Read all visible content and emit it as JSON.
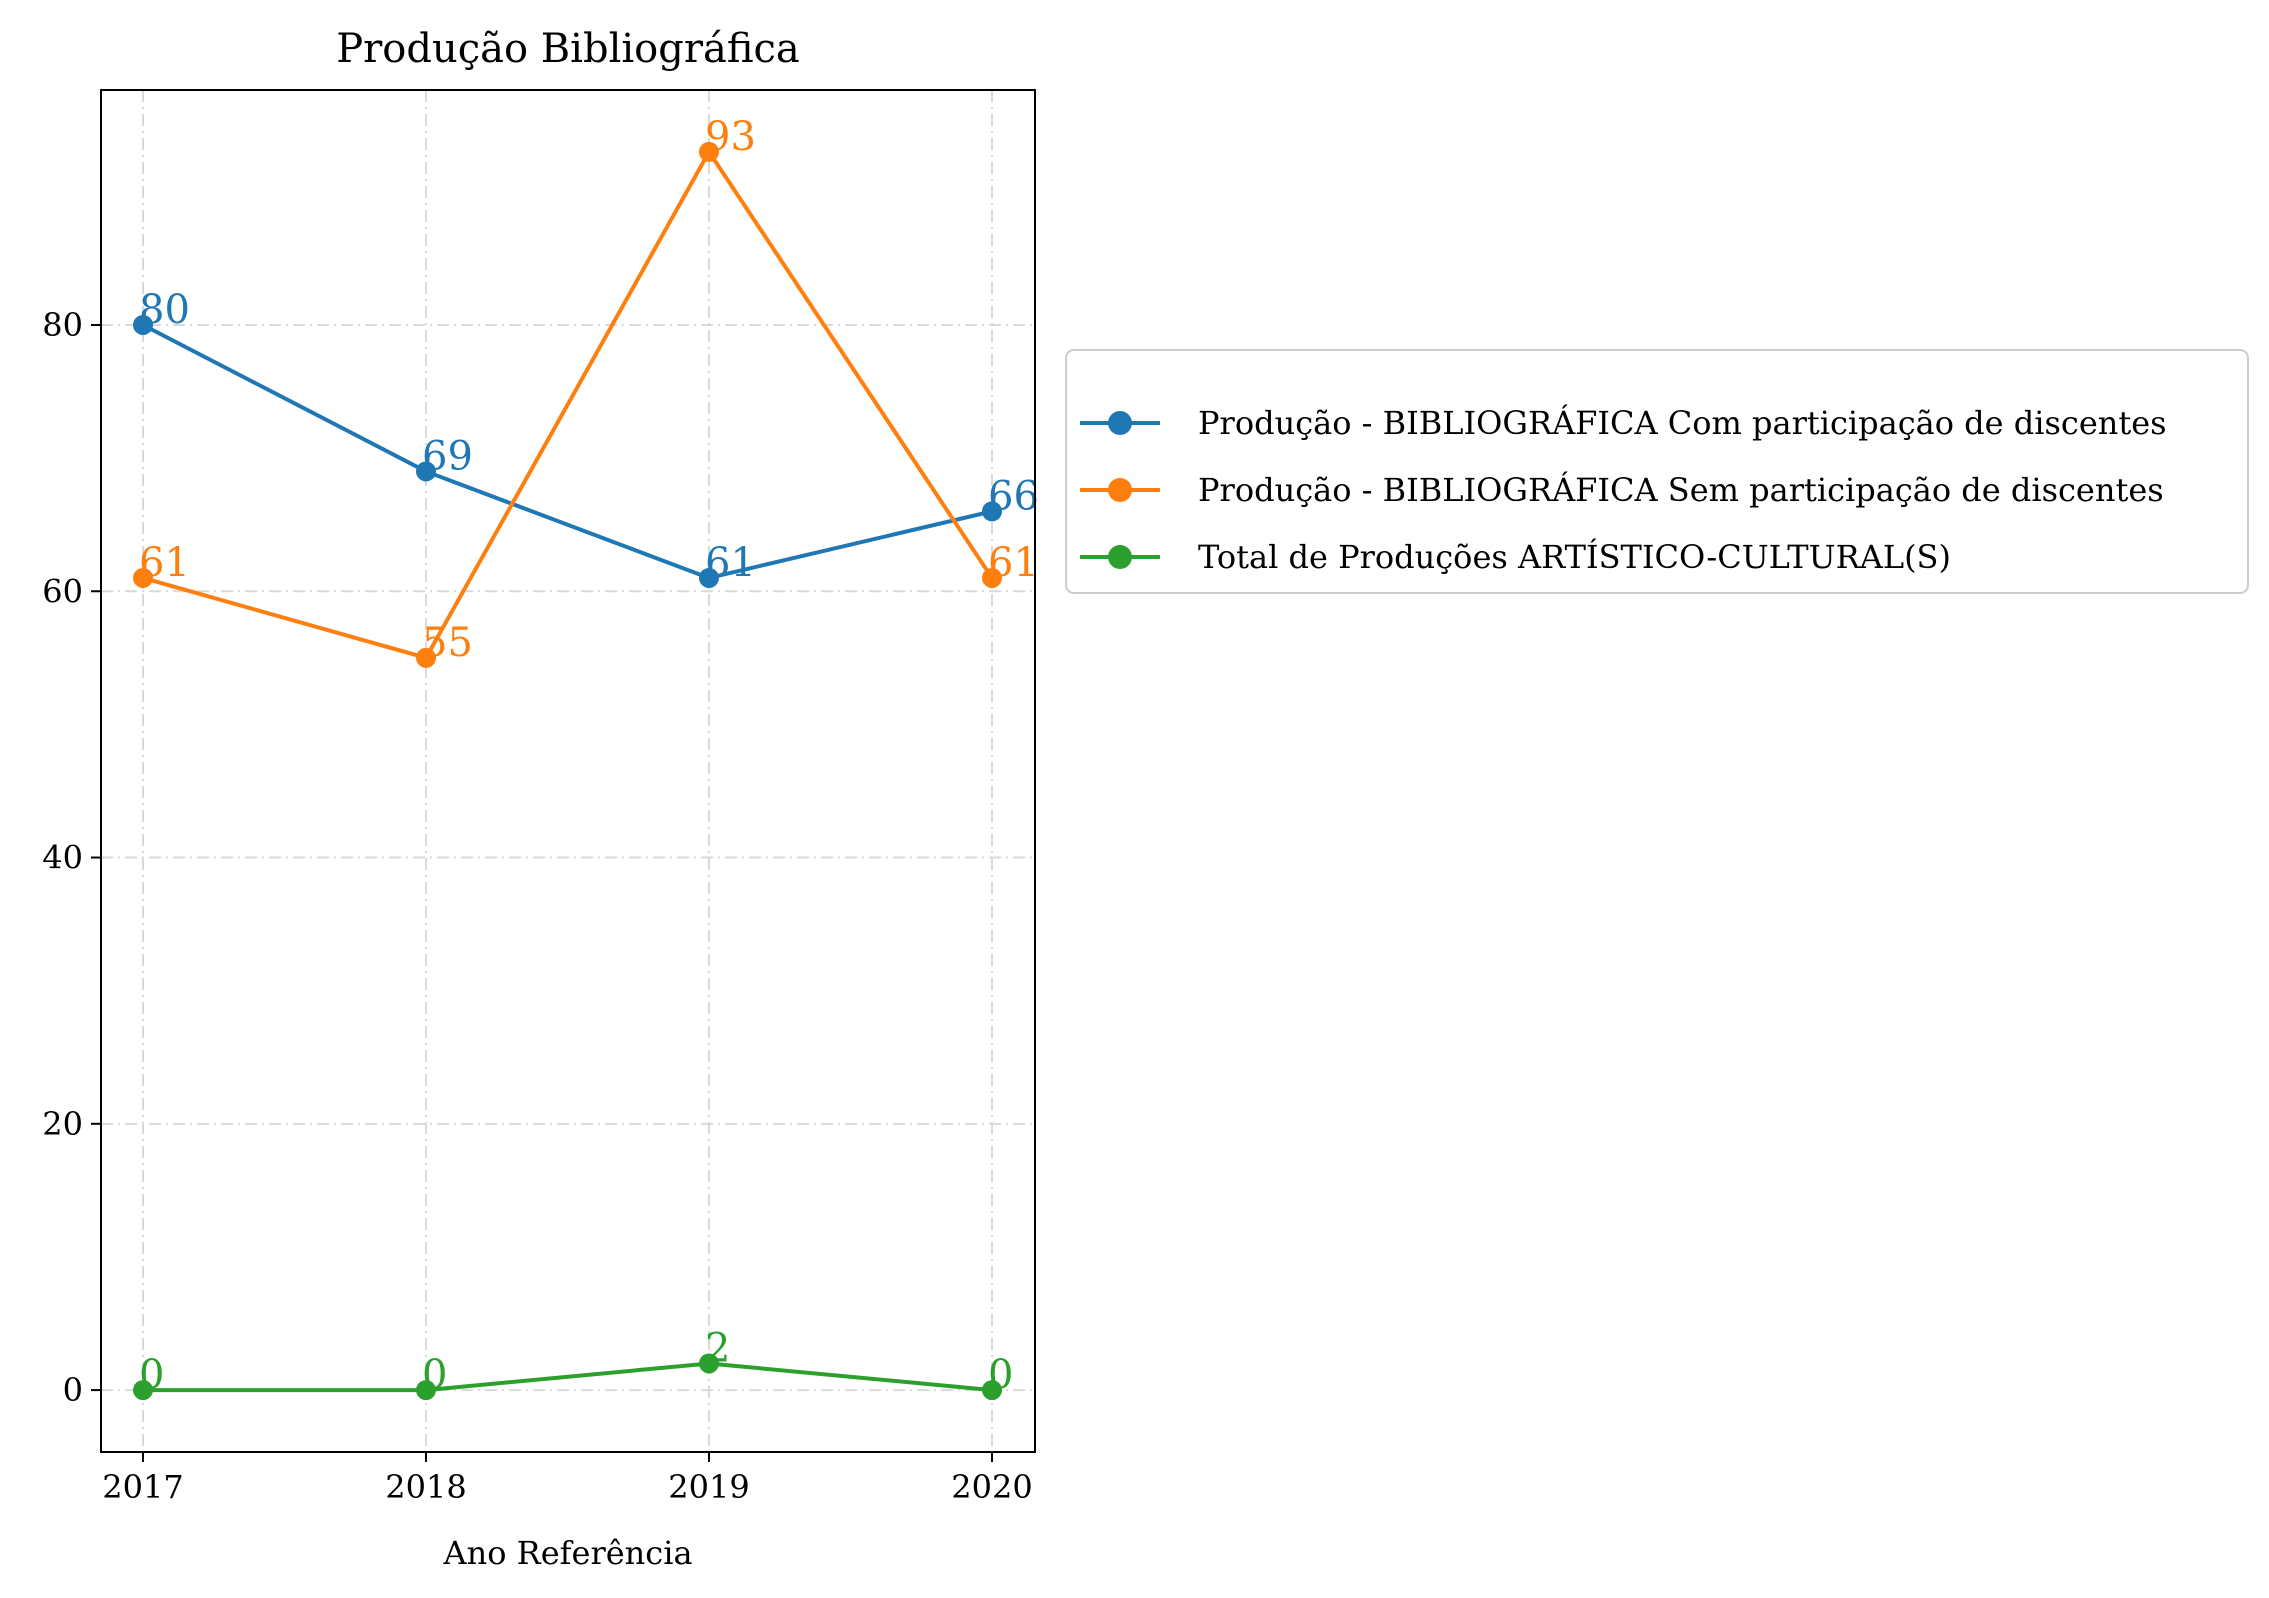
{
  "chart_data": {
    "type": "line",
    "title": "Produção Bibliográfica",
    "xlabel": "Ano Referência",
    "ylabel": "",
    "categories": [
      "2017",
      "2018",
      "2019",
      "2020"
    ],
    "yticks": [
      "0",
      "20",
      "40",
      "60",
      "80"
    ],
    "ylim": [
      -4.65,
      97.65
    ],
    "grid": true,
    "legend_position": "right",
    "series": [
      {
        "name": "Produção - BIBLIOGRÁFICA Com participação de discentes",
        "color": "#1f77b4",
        "values": [
          80,
          69,
          61,
          66
        ],
        "labels": [
          "80",
          "69",
          "61",
          "66"
        ]
      },
      {
        "name": "Produção - BIBLIOGRÁFICA Sem participação de discentes",
        "color": "#ff7f0e",
        "values": [
          61,
          55,
          93,
          61
        ],
        "labels": [
          "61",
          "55",
          "93",
          "61"
        ]
      },
      {
        "name": "Total de Produções ARTÍSTICO-CULTURAL(S)",
        "color": "#2ca02c",
        "values": [
          0,
          0,
          2,
          0
        ],
        "labels": [
          "0",
          "0",
          "2",
          "0"
        ]
      }
    ]
  }
}
